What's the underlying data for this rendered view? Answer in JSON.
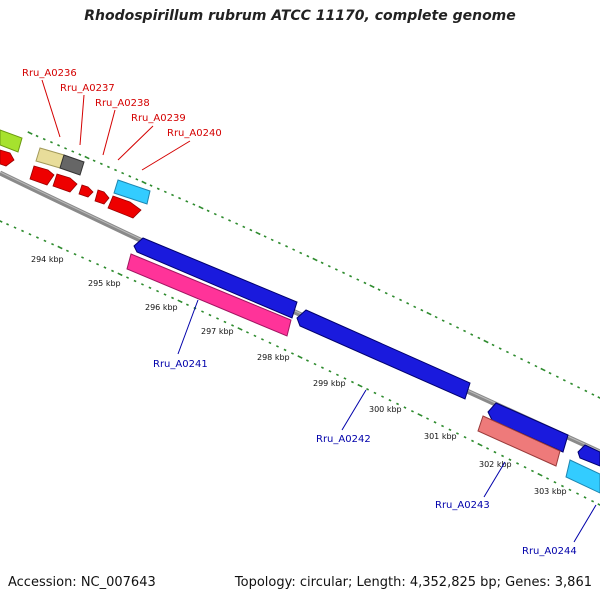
{
  "header": {
    "title": "Rhodospirillum rubrum ATCC 11170, complete genome"
  },
  "footer": {
    "accession": "Accession: NC_007643",
    "summary": "Topology: circular; Length: 4,352,825 bp; Genes: 3,861"
  },
  "map": {
    "colors": {
      "backbone": "#8a8a8a",
      "tick_green": "#2e8b2e",
      "red_label": "#d40000",
      "blue_label": "#0000aa"
    },
    "kbp_labels": [
      "294 kbp",
      "295 kbp",
      "296 kbp",
      "297 kbp",
      "298 kbp",
      "299 kbp",
      "300 kbp",
      "301 kbp",
      "302 kbp",
      "303 kbp"
    ],
    "gene_labels_top": [
      "Rru_A0236",
      "Rru_A0237",
      "Rru_A0238",
      "Rru_A0239",
      "Rru_A0240"
    ],
    "gene_labels_bottom": [
      "Rru_A0241",
      "Rru_A0242",
      "Rru_A0243",
      "Rru_A0244"
    ]
  }
}
